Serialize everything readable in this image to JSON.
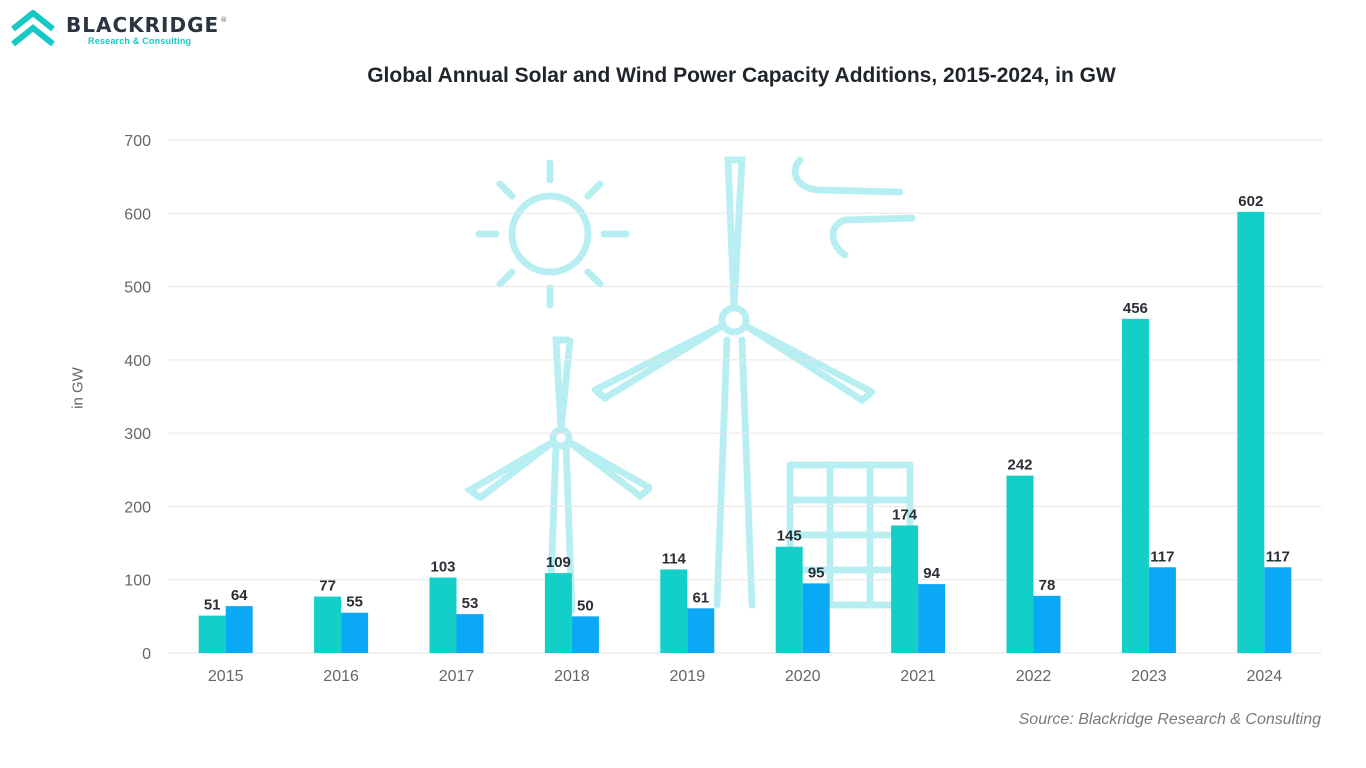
{
  "logo": {
    "name": "BLACKRIDGE",
    "reg_mark": "®",
    "tagline": "Research & Consulting"
  },
  "colors": {
    "solar": "#12cfc7",
    "wind": "#0aa8f5",
    "logo_teal": "#17c9c4",
    "grid": "#e6e6e6"
  },
  "chart_data": {
    "type": "bar",
    "title": "Global Annual Solar and Wind Power Capacity Additions, 2015-2024, in GW",
    "xlabel": "",
    "ylabel": "in GW",
    "ylim": [
      0,
      700
    ],
    "yticks": [
      "0",
      "100",
      "200",
      "300",
      "400",
      "500",
      "600",
      "700"
    ],
    "categories": [
      "2015",
      "2016",
      "2017",
      "2018",
      "2019",
      "2020",
      "2021",
      "2022",
      "2023",
      "2024"
    ],
    "series": [
      {
        "name": "Solar",
        "values": [
          51,
          77,
          103,
          109,
          114,
          145,
          174,
          242,
          456,
          602
        ]
      },
      {
        "name": "Wind",
        "values": [
          64,
          55,
          53,
          50,
          61,
          95,
          94,
          78,
          117,
          117
        ]
      }
    ]
  },
  "source": "Source: Blackridge Research & Consulting"
}
